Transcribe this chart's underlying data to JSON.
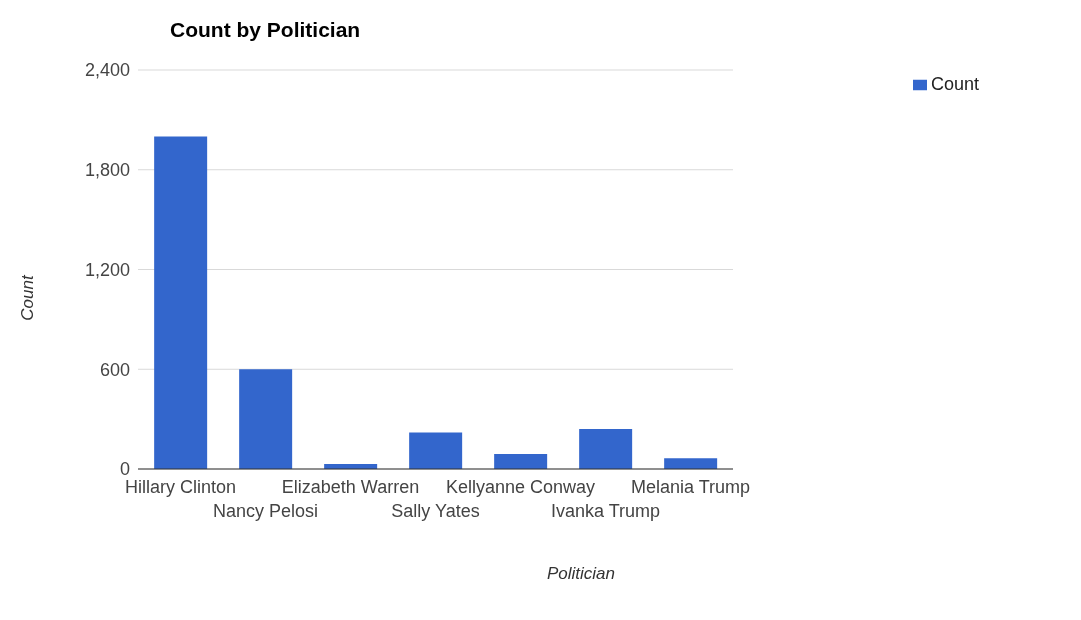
{
  "chart_data": {
    "type": "bar",
    "title": "Count by Politician",
    "xlabel": "Politician",
    "ylabel": "Count",
    "categories": [
      "Hillary Clinton",
      "Nancy Pelosi",
      "Elizabeth Warren",
      "Sally Yates",
      "Kellyanne Conway",
      "Ivanka Trump",
      "Melania Trump"
    ],
    "series": [
      {
        "name": "Count",
        "color": "#3366cc",
        "values": [
          2000,
          600,
          30,
          220,
          90,
          240,
          65
        ]
      }
    ],
    "ylim": [
      0,
      2400
    ],
    "yticks": [
      {
        "value": 0,
        "label": "0"
      },
      {
        "value": 600,
        "label": "600"
      },
      {
        "value": 1200,
        "label": "1,200"
      },
      {
        "value": 1800,
        "label": "1,800"
      },
      {
        "value": 2400,
        "label": "2,400"
      }
    ],
    "grid": "y",
    "legend": "top right"
  }
}
